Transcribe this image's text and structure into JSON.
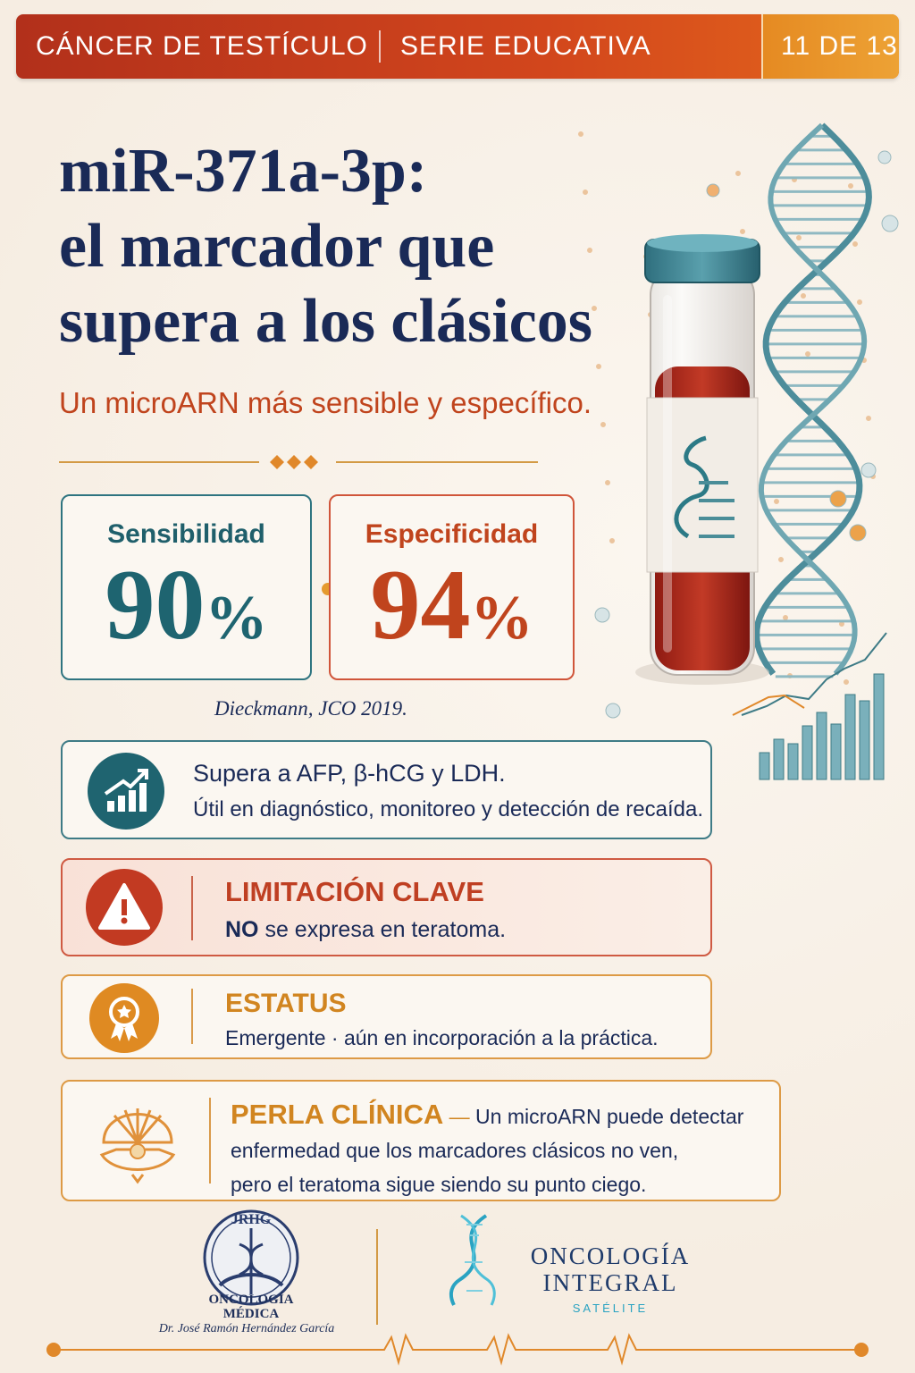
{
  "header": {
    "series": "CÁNCER DE TESTÍCULO",
    "subtitle": "SERIE EDUCATIVA",
    "page": "11 DE 13"
  },
  "title": [
    "miR-371a-3p:",
    "el marcador que",
    "supera a los clásicos"
  ],
  "subtitle": "Un microARN más sensible y específico.",
  "stats": [
    {
      "label": "Sensibilidad",
      "value": 90,
      "unit": "%"
    },
    {
      "label": "Especificidad",
      "value": 94,
      "unit": "%"
    }
  ],
  "citation": "Dieckmann, JCO 2019.",
  "advantage": {
    "title": "Supera a AFP, β-hCG y LDH.",
    "text": "Útil en diagnóstico, monitoreo y detección de recaída."
  },
  "limitation": {
    "title": "LIMITACIÓN CLAVE",
    "emphasis": "NO",
    "text": " se expresa en teratoma."
  },
  "status": {
    "title": "ESTATUS",
    "text": "Emergente · aún en incorporación a la práctica."
  },
  "pearl": {
    "title": "PERLA CLÍNICA",
    "dash": "—",
    "lines": [
      "Un microARN puede detectar",
      "enfermedad que los marcadores clásicos no ven,",
      "pero el teratoma sigue siendo su punto ciego."
    ]
  },
  "footer": {
    "left": {
      "initials": "JRHG",
      "name": [
        "ONCOLOGÍA",
        "MÉDICA"
      ],
      "doctor": "Dr. José Ramón Hernández García"
    },
    "right": {
      "name": [
        "ONCOLOGÍA",
        "INTEGRAL"
      ],
      "location": "SATÉLITE"
    }
  }
}
